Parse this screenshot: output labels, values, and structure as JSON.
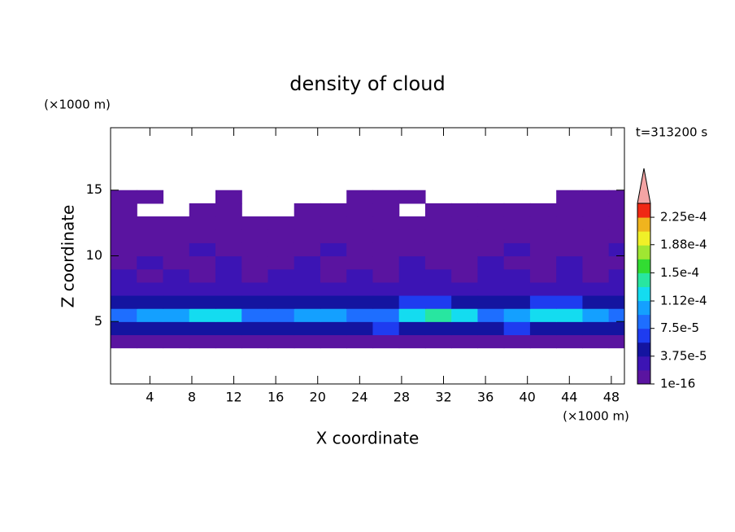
{
  "chart_data": {
    "type": "contour",
    "title": "density of cloud",
    "x_label": "X coordinate",
    "y_label": "Z coordinate",
    "x_unit": "(×1000 m)",
    "y_unit": "(×1000 m)",
    "time_label": "t=313200 s",
    "xlim": [
      0.25,
      49.25
    ],
    "ylim": [
      0.25,
      19.75
    ],
    "xticks": [
      4,
      8,
      12,
      16,
      20,
      24,
      28,
      32,
      36,
      40,
      44,
      48
    ],
    "yticks": [
      5,
      10,
      15
    ],
    "x": [
      1.5,
      4,
      6.5,
      9,
      11.5,
      14,
      16.5,
      19,
      21.5,
      24,
      26.5,
      29,
      31.5,
      34,
      36.5,
      39,
      41.5,
      44,
      46.5,
      49
    ],
    "z": [
      3.5,
      4.5,
      5.5,
      6.5,
      7.5,
      8.5,
      9.5,
      10.5,
      11.5,
      12.5,
      13.5,
      14.5
    ],
    "values": [
      [
        1e-05,
        1e-05,
        1e-05,
        1e-05,
        1e-05,
        1e-05,
        1e-05,
        1e-05,
        1e-05,
        1e-05,
        1e-05,
        1e-05,
        1e-05,
        1e-05,
        1e-05,
        1e-05,
        1e-05,
        1e-05,
        1e-05,
        1e-05
      ],
      [
        4e-05,
        4.5e-05,
        5e-05,
        5e-05,
        4.5e-05,
        4e-05,
        5e-05,
        5e-05,
        4e-05,
        5e-05,
        6e-05,
        5.5e-05,
        5e-05,
        4.5e-05,
        5e-05,
        6e-05,
        5e-05,
        4.5e-05,
        5e-05,
        4e-05
      ],
      [
        8e-05,
        0.0001,
        0.00011,
        0.00012,
        0.000115,
        9e-05,
        8e-05,
        0.0001,
        0.000105,
        8e-05,
        9e-05,
        0.00012,
        0.00014,
        0.000115,
        9e-05,
        0.00011,
        0.00012,
        0.000115,
        0.0001,
        8e-05
      ],
      [
        4e-05,
        4.5e-05,
        5e-05,
        5e-05,
        5.5e-05,
        4e-05,
        4.5e-05,
        5e-05,
        5e-05,
        4e-05,
        5e-05,
        6e-05,
        6.5e-05,
        5.5e-05,
        5e-05,
        5.5e-05,
        6.5e-05,
        6e-05,
        5e-05,
        4e-05
      ],
      [
        2.5e-05,
        3e-05,
        2e-05,
        3e-05,
        3.5e-05,
        2.5e-05,
        3e-05,
        2.5e-05,
        3e-05,
        2e-05,
        3e-05,
        3.5e-05,
        3e-05,
        2.5e-05,
        3e-05,
        3e-05,
        3.5e-05,
        2.5e-05,
        3e-05,
        2e-05
      ],
      [
        2e-05,
        1.5e-05,
        2e-05,
        1.5e-05,
        2e-05,
        1.5e-05,
        2e-05,
        2e-05,
        1.5e-05,
        2e-05,
        1.5e-05,
        2e-05,
        2e-05,
        1.5e-05,
        2e-05,
        2e-05,
        1.5e-05,
        2e-05,
        1.5e-05,
        2e-05
      ],
      [
        1.2e-05,
        2e-05,
        1.2e-05,
        1.2e-05,
        2e-05,
        1.2e-05,
        1.2e-05,
        2e-05,
        1.2e-05,
        1.2e-05,
        1.2e-05,
        2e-05,
        1.2e-05,
        1.2e-05,
        2e-05,
        1.2e-05,
        1.2e-05,
        2e-05,
        1.2e-05,
        1.2e-05
      ],
      [
        1e-05,
        1e-05,
        1e-05,
        2e-05,
        1e-05,
        1e-05,
        1e-05,
        1e-05,
        2e-05,
        1e-05,
        1e-05,
        1e-05,
        1e-05,
        1e-05,
        1e-05,
        2e-05,
        1e-05,
        1e-05,
        1e-05,
        2e-05
      ],
      [
        5e-06,
        5e-06,
        5e-06,
        5e-06,
        5e-06,
        5e-06,
        5e-06,
        5e-06,
        5e-06,
        5e-06,
        5e-06,
        5e-06,
        5e-06,
        5e-06,
        5e-06,
        5e-06,
        5e-06,
        5e-06,
        5e-06,
        5e-06
      ],
      [
        3e-06,
        3e-06,
        3e-06,
        3e-06,
        3e-06,
        3e-06,
        3e-06,
        3e-06,
        3e-06,
        3e-06,
        3e-06,
        3e-06,
        3e-06,
        3e-06,
        3e-06,
        3e-06,
        3e-06,
        3e-06,
        3e-06,
        3e-06
      ],
      [
        2e-06,
        null,
        null,
        2e-06,
        2e-06,
        null,
        null,
        2e-06,
        2e-06,
        2e-06,
        2e-06,
        null,
        2e-06,
        2e-06,
        2e-06,
        2e-06,
        2e-06,
        2e-06,
        2e-06,
        2e-06
      ],
      [
        2e-06,
        2e-06,
        null,
        null,
        2e-06,
        null,
        null,
        null,
        null,
        2e-06,
        2e-06,
        2e-06,
        null,
        null,
        null,
        null,
        null,
        2e-06,
        2e-06,
        2e-06
      ]
    ],
    "clim": [
      1e-16,
      0.00024375
    ],
    "colors": [
      "#5a14a0",
      "#3c14b4",
      "#1414a0",
      "#1e3cf0",
      "#1e6eff",
      "#14a0ff",
      "#14dcf0",
      "#28e6a0",
      "#32dc32",
      "#a0e632",
      "#f0f028",
      "#f0b41e",
      "#f02814"
    ],
    "cticks": [
      1e-16,
      {
        "value": 3.75e-05,
        "label": "3.75e-5"
      },
      {
        "value": 7.5e-05,
        "label": "7.5e-5"
      },
      {
        "value": 0.000112,
        "label": "1.12e-4"
      },
      {
        "value": 0.00015,
        "label": "1.5e-4"
      },
      {
        "value": 0.000188,
        "label": "1.88e-4"
      },
      {
        "value": 0.000225,
        "label": "2.25e-4"
      }
    ]
  }
}
